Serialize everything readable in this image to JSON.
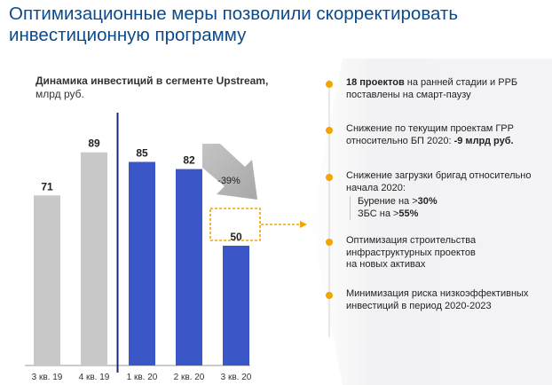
{
  "page": {
    "title_line1": "Оптимизационные меры позволили скорректировать",
    "title_line2": "инвестиционную программу"
  },
  "chart_data": {
    "type": "bar",
    "title_bold": "Динамика инвестиций в сегменте Upstream,",
    "title_rest": "млрд руб.",
    "categories": [
      "3 кв. 19",
      "4 кв. 19",
      "1 кв. 20",
      "2 кв. 20",
      "3 кв. 20"
    ],
    "values": [
      71,
      89,
      85,
      82,
      50
    ],
    "value_labels": [
      "71",
      "89",
      "85",
      "82",
      "50"
    ],
    "series_color_by_bar": [
      "#c8c8c8",
      "#c8c8c8",
      "#3b56c7",
      "#3b56c7",
      "#3b56c7"
    ],
    "annotation": "-39%",
    "ylim": [
      0,
      100
    ],
    "grid": false,
    "legend": "none"
  },
  "colors": {
    "title": "#0b4a8b",
    "accent": "#f0a500",
    "gray_bar": "#c8c8c8",
    "blue_bar": "#3b56c7",
    "divider": "#1a2b6b"
  },
  "measures": [
    {
      "bold": "18 проектов",
      "rest": " на ранней стадии и РРБ",
      "line2": "поставлены на смарт-паузу"
    },
    {
      "line1": "Снижение по текущим проектам ГРР",
      "line2_pre": "относительно БП 2020: ",
      "line2_bold": "-9 млрд руб."
    },
    {
      "line1": "Снижение загрузки бригад относительно",
      "line2": "начала 2020:",
      "sub1_pre": "Бурение на >",
      "sub1_bold": "30%",
      "sub2_pre": "ЗБС на >",
      "sub2_bold": "55%"
    },
    {
      "line1": "Оптимизация строительства",
      "line2": "инфраструктурных проектов",
      "line3": "на новых активах"
    },
    {
      "line1": "Минимизация риска низкоэффективных",
      "line2": "инвестиций в период 2020-2023"
    }
  ]
}
